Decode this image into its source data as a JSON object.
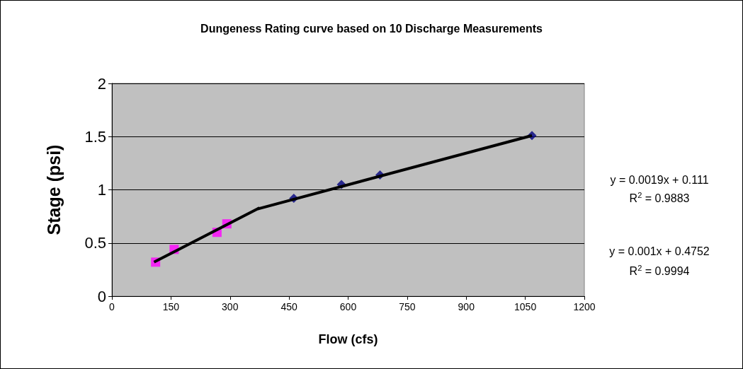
{
  "chart_data": {
    "type": "scatter",
    "title": "Dungeness Rating curve based on 10 Discharge Measurements",
    "xlabel": "Flow (cfs)",
    "ylabel": "Stage (psi)",
    "xlim": [
      0,
      1200
    ],
    "xticks": [
      0,
      150,
      300,
      450,
      600,
      750,
      900,
      1050,
      1200
    ],
    "ylim": [
      0,
      2
    ],
    "yticks": [
      0,
      0.5,
      1,
      1.5,
      2
    ],
    "grid": "y",
    "series": [
      {
        "marker": "square",
        "color": "#ff00ff",
        "x": [
          111,
          158,
          267,
          292
        ],
        "values": [
          0.32,
          0.44,
          0.6,
          0.68
        ]
      },
      {
        "marker": "diamond",
        "color": "#000080",
        "x": [
          462,
          583,
          681,
          1067
        ],
        "values": [
          0.92,
          1.05,
          1.14,
          1.51
        ]
      },
      {
        "type": "line",
        "marker": "none",
        "color": "#000000",
        "x": [
          107,
          375
        ],
        "values": [
          0.32,
          0.83
        ]
      },
      {
        "type": "line",
        "marker": "none",
        "color": "#000000",
        "x": [
          370,
          1067
        ],
        "values": [
          0.82,
          1.51
        ]
      }
    ],
    "annotations": [
      "y = 0.0019x + 0.111",
      "R$^{2}$ = 0.9883",
      "y = 0.001x + 0.4752",
      "R$^{2}$ = 0.9994"
    ]
  }
}
